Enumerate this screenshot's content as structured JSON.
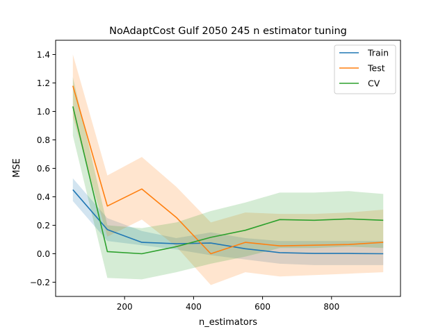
{
  "chart_data": {
    "type": "line",
    "title": "NoAdaptCost Gulf 2050 245 n estimator tuning",
    "xlabel": "n_estimators",
    "ylabel": "MSE",
    "xlim": [
      0,
      1000
    ],
    "ylim": [
      -0.3,
      1.5
    ],
    "xticks": [
      200,
      400,
      600,
      800
    ],
    "xtick_labels": [
      "200",
      "400",
      "600",
      "800"
    ],
    "yticks": [
      -0.2,
      0.0,
      0.2,
      0.4,
      0.6,
      0.8,
      1.0,
      1.2,
      1.4
    ],
    "ytick_labels": [
      "−0.2",
      "0.0",
      "0.2",
      "0.4",
      "0.6",
      "0.8",
      "1.0",
      "1.2",
      "1.4"
    ],
    "grid": false,
    "legend_position": "top-right",
    "x": [
      50,
      150,
      250,
      350,
      450,
      550,
      650,
      750,
      850,
      950
    ],
    "series": [
      {
        "name": "Train",
        "color": "#1f77b4",
        "values": [
          0.45,
          0.17,
          0.08,
          0.07,
          0.075,
          0.035,
          0.008,
          0.002,
          0.002,
          0.0
        ],
        "lower": [
          0.37,
          0.09,
          0.06,
          0.03,
          -0.01,
          -0.04,
          -0.07,
          -0.08,
          -0.08,
          -0.08
        ],
        "upper": [
          0.53,
          0.25,
          0.16,
          0.11,
          0.15,
          0.11,
          0.09,
          0.09,
          0.09,
          0.09
        ]
      },
      {
        "name": "Test",
        "color": "#ff7f0e",
        "values": [
          1.18,
          0.335,
          0.455,
          0.255,
          0.0,
          0.08,
          0.055,
          0.06,
          0.065,
          0.08
        ],
        "lower": [
          0.96,
          0.12,
          0.24,
          0.05,
          -0.22,
          -0.13,
          -0.16,
          -0.15,
          -0.14,
          -0.13
        ],
        "upper": [
          1.4,
          0.55,
          0.68,
          0.47,
          0.22,
          0.29,
          0.28,
          0.28,
          0.29,
          0.31
        ]
      },
      {
        "name": "CV",
        "color": "#2ca02c",
        "values": [
          1.035,
          0.015,
          0.0,
          0.05,
          0.115,
          0.165,
          0.24,
          0.235,
          0.245,
          0.235
        ],
        "lower": [
          0.83,
          -0.17,
          -0.18,
          -0.13,
          -0.07,
          -0.02,
          0.04,
          0.04,
          0.05,
          0.04
        ],
        "upper": [
          1.24,
          0.2,
          0.18,
          0.22,
          0.3,
          0.36,
          0.43,
          0.43,
          0.44,
          0.42
        ]
      }
    ]
  }
}
